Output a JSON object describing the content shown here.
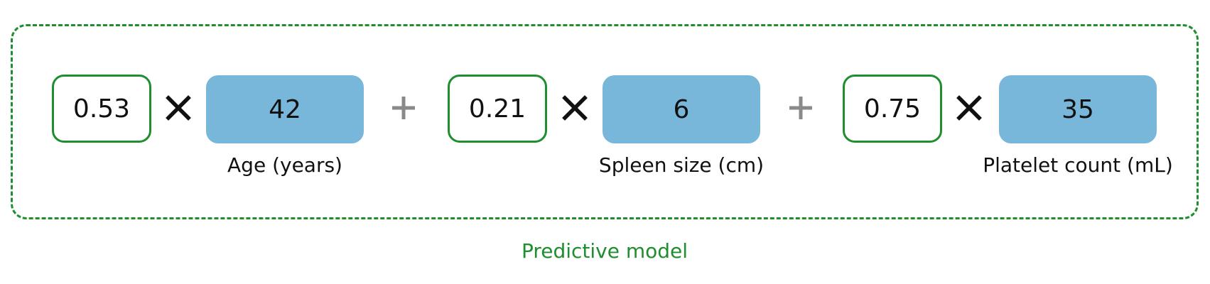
{
  "model": {
    "label": "Predictive model",
    "frame_color": "#1e8e2e",
    "terms": [
      {
        "coefficient": "0.53",
        "value": "42",
        "variable": "Age (years)"
      },
      {
        "coefficient": "0.21",
        "value": "6",
        "variable": "Spleen size (cm)"
      },
      {
        "coefficient": "0.75",
        "value": "35",
        "variable": "Platelet count (mL)"
      }
    ],
    "operators": {
      "multiply": "times-icon",
      "add": "plus-icon"
    },
    "colors": {
      "coefficient_border": "#1e8e2e",
      "value_fill": "#78b7da",
      "multiply": "#111111",
      "add": "#8a8a8a"
    }
  }
}
